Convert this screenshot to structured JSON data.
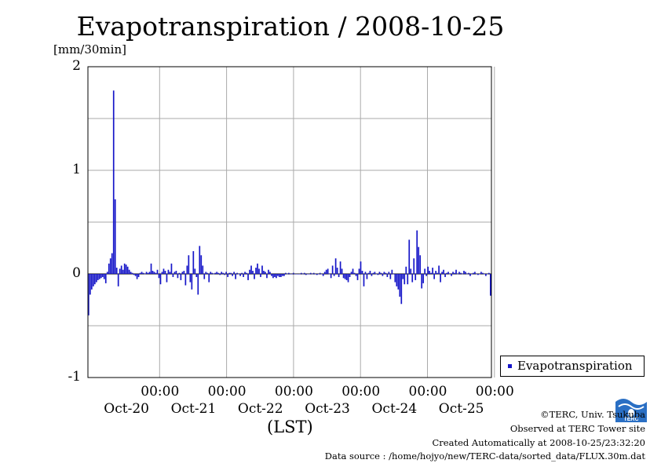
{
  "chart_data": {
    "type": "bar",
    "title": "Evapotranspiration / 2008-10-25",
    "ylabel": "[mm/30min]",
    "xlabel": "(LST)",
    "ylim": [
      -1,
      2
    ],
    "y_ticks": [
      "2",
      "1",
      "0",
      "-1"
    ],
    "x_ticks": [
      {
        "time": "00:00",
        "date": "Oct-20"
      },
      {
        "time": "00:00",
        "date": "Oct-21"
      },
      {
        "time": "00:00",
        "date": "Oct-22"
      },
      {
        "time": "00:00",
        "date": "Oct-23"
      },
      {
        "time": "00:00",
        "date": "Oct-24"
      },
      {
        "time": "00:00",
        "date": "Oct-25"
      }
    ],
    "grid": true,
    "legend": "right",
    "series_color": "#1515c8",
    "series": [
      {
        "name": "Evapotranspiration",
        "x_start": "2008-10-19 00:00",
        "interval": "30min",
        "values": [
          -0.4,
          -0.2,
          -0.15,
          -0.12,
          -0.1,
          -0.08,
          -0.06,
          -0.05,
          -0.04,
          -0.03,
          -0.05,
          -0.09,
          0.02,
          0.1,
          0.15,
          0.2,
          1.77,
          0.72,
          0.06,
          -0.12,
          0.05,
          0.08,
          0.04,
          0.1,
          0.09,
          0.07,
          0.04,
          0.02,
          0.01,
          -0.01,
          -0.02,
          -0.05,
          -0.03,
          0.01,
          0.02,
          0.01,
          0.0,
          0.02,
          0.01,
          0.02,
          0.1,
          0.03,
          0.02,
          0.01,
          0.04,
          -0.04,
          -0.1,
          0.02,
          0.05,
          0.03,
          -0.08,
          0.04,
          0.02,
          0.1,
          -0.03,
          0.02,
          0.03,
          -0.04,
          0.01,
          -0.06,
          0.02,
          0.03,
          -0.11,
          0.08,
          0.18,
          -0.08,
          -0.15,
          0.22,
          0.05,
          -0.03,
          -0.2,
          0.27,
          0.18,
          0.08,
          -0.05,
          0.02,
          0.01,
          -0.08,
          0.02,
          0.01,
          0.0,
          0.01,
          0.02,
          0.01,
          -0.01,
          0.02,
          0.01,
          -0.01,
          0.02,
          -0.03,
          0.01,
          0.01,
          -0.02,
          0.02,
          -0.05,
          0.01,
          0.0,
          -0.02,
          0.01,
          -0.03,
          0.02,
          0.01,
          -0.06,
          0.04,
          0.08,
          0.03,
          -0.05,
          0.06,
          0.1,
          0.05,
          -0.03,
          0.08,
          0.03,
          0.02,
          -0.04,
          0.04,
          0.02,
          -0.02,
          -0.04,
          -0.03,
          -0.04,
          -0.02,
          -0.03,
          -0.03,
          -0.02,
          -0.02,
          0.01,
          0.0,
          0.01,
          0.0,
          0.0,
          0.01,
          0.0,
          0.0,
          0.0,
          0.0,
          0.01,
          0.0,
          0.01,
          -0.01,
          0.0,
          0.0,
          0.01,
          0.0,
          0.01,
          0.0,
          -0.01,
          0.0,
          0.01,
          0.0,
          -0.02,
          0.02,
          0.04,
          0.05,
          0.0,
          -0.04,
          0.08,
          -0.02,
          0.15,
          0.06,
          -0.03,
          0.12,
          0.05,
          -0.04,
          -0.05,
          -0.06,
          -0.08,
          -0.03,
          0.02,
          0.05,
          0.01,
          -0.02,
          -0.06,
          0.05,
          0.12,
          0.03,
          -0.12,
          0.02,
          -0.05,
          0.01,
          0.03,
          -0.02,
          0.01,
          0.02,
          0.0,
          -0.01,
          0.02,
          0.01,
          -0.02,
          0.02,
          0.01,
          -0.03,
          0.02,
          -0.05,
          0.04,
          0.0,
          -0.08,
          -0.12,
          -0.15,
          -0.22,
          -0.29,
          -0.05,
          -0.1,
          0.07,
          -0.1,
          0.33,
          0.05,
          -0.08,
          0.15,
          -0.06,
          0.42,
          0.26,
          0.18,
          -0.14,
          -0.09,
          0.05,
          -0.02,
          0.07,
          0.03,
          0.01,
          0.06,
          -0.05,
          0.03,
          0.01,
          0.08,
          -0.08,
          0.02,
          0.04,
          -0.03,
          0.01,
          0.02,
          0.0,
          -0.02,
          0.02,
          0.01,
          0.04,
          0.0,
          0.02,
          0.01,
          0.0,
          0.03,
          0.02,
          0.0,
          0.01,
          -0.02,
          0.0,
          0.01,
          0.02,
          0.0,
          -0.01,
          0.0,
          0.02,
          0.01,
          0.0,
          -0.02,
          0.0,
          0.01,
          -0.21
        ]
      }
    ]
  },
  "legend_label": "Evapotranspiration",
  "credits": [
    "©TERC, Univ. Tsukuba",
    "Observed at TERC Tower site",
    "Created Automatically at 2008-10-25/23:32:20",
    "Data source : /home/hojyo/new/TERC-data/sorted_data/FLUX.30m.dat"
  ],
  "logo_text": "TERC"
}
